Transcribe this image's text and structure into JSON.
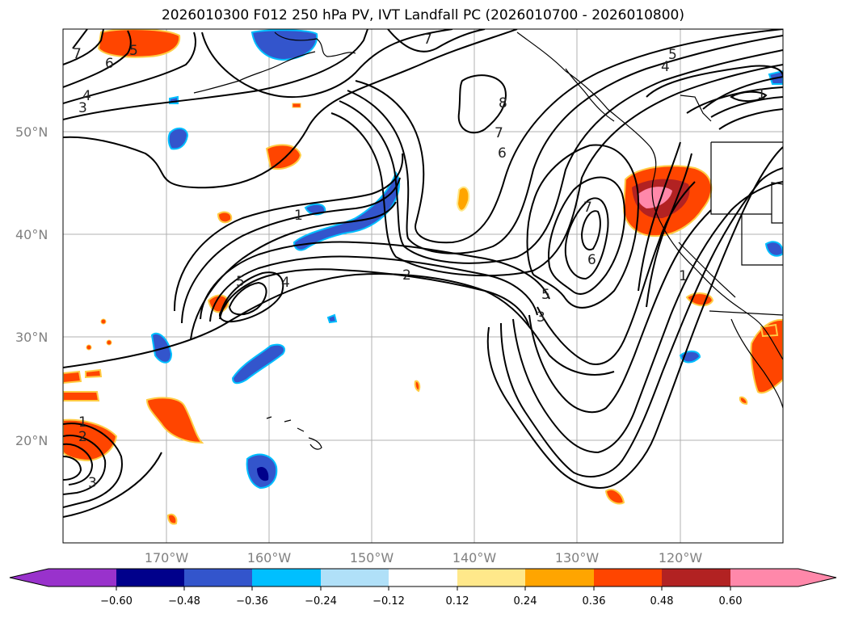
{
  "title": "2026010300 F012 250 hPa PV, IVT Landfall PC (2026010700 - 2026010800)",
  "map": {
    "projection": "PlateCarree",
    "extent": {
      "lon": [
        "180°",
        "110°W"
      ],
      "lat": [
        "10°N",
        "60°N"
      ]
    },
    "gridlines": true,
    "lat_labels": [
      "50°N",
      "40°N",
      "30°N",
      "20°N"
    ],
    "lon_labels": [
      "170°W",
      "160°W",
      "150°W",
      "140°W",
      "130°W",
      "120°W"
    ],
    "contour_labels": [
      "7",
      "6",
      "5",
      "4",
      "3",
      "7",
      "8",
      "7",
      "6",
      "5",
      "4",
      "1",
      "1",
      "5",
      "4",
      "2",
      "5",
      "3",
      "7",
      "6",
      "1",
      "1",
      "2",
      "3"
    ]
  },
  "colorbar": {
    "ticks": [
      "−0.60",
      "−0.48",
      "−0.36",
      "−0.24",
      "−0.12",
      "0.12",
      "0.24",
      "0.36",
      "0.48",
      "0.60"
    ],
    "colors": [
      "#9932cc",
      "#00008b",
      "#3355cc",
      "#00bfff",
      "#b0e0f8",
      "#ffffff",
      "#ffe88a",
      "#ffa500",
      "#ff4500",
      "#b22222",
      "#ff88aa"
    ]
  }
}
